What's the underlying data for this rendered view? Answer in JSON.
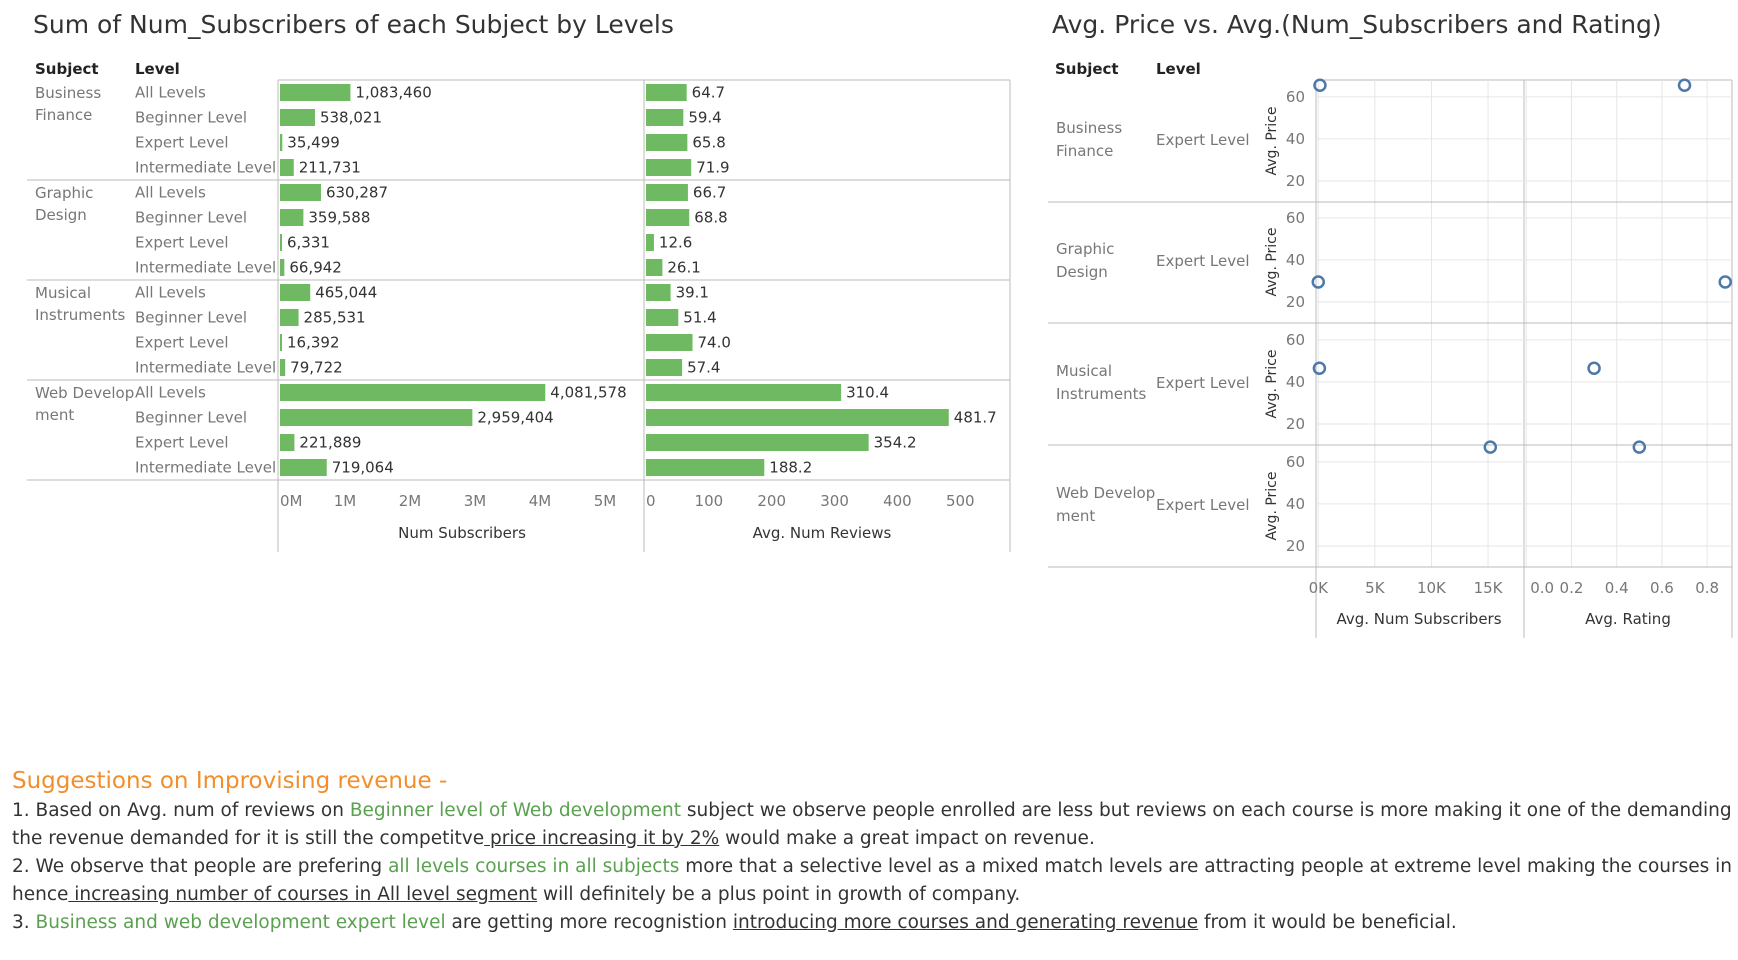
{
  "left_title": "Sum of Num_Subscribers of each Subject by Levels",
  "right_title": "Avg. Price vs. Avg.(Num_Subscribers and Rating)",
  "col_headers": {
    "subject": "Subject",
    "level": "Level"
  },
  "colors": {
    "bar": "#6eb962",
    "marker": "#4e79a7",
    "accent": "#f28e2b",
    "highlight": "#59a14f",
    "grid": "#e6e6e6",
    "border": "#bbbbbb"
  },
  "chart_data": [
    {
      "type": "bar",
      "title": "Sum of Num_Subscribers of each Subject by Levels",
      "groups": [
        {
          "subject": [
            "Business",
            "Finance"
          ]
        },
        {
          "subject": [
            "Graphic",
            "Design"
          ]
        },
        {
          "subject": [
            "Musical",
            "Instruments"
          ]
        },
        {
          "subject": [
            "Web Develop",
            "ment"
          ]
        }
      ],
      "rows": [
        {
          "group": 0,
          "level": "All Levels",
          "subscribers": 1083460,
          "sub_label": "1,083,460",
          "reviews": 64.7,
          "rev_label": "64.7"
        },
        {
          "group": 0,
          "level": "Beginner Level",
          "subscribers": 538021,
          "sub_label": "538,021",
          "reviews": 59.4,
          "rev_label": "59.4"
        },
        {
          "group": 0,
          "level": "Expert Level",
          "subscribers": 35499,
          "sub_label": "35,499",
          "reviews": 65.8,
          "rev_label": "65.8"
        },
        {
          "group": 0,
          "level": "Intermediate Level",
          "subscribers": 211731,
          "sub_label": "211,731",
          "reviews": 71.9,
          "rev_label": "71.9"
        },
        {
          "group": 1,
          "level": "All Levels",
          "subscribers": 630287,
          "sub_label": "630,287",
          "reviews": 66.7,
          "rev_label": "66.7"
        },
        {
          "group": 1,
          "level": "Beginner Level",
          "subscribers": 359588,
          "sub_label": "359,588",
          "reviews": 68.8,
          "rev_label": "68.8"
        },
        {
          "group": 1,
          "level": "Expert Level",
          "subscribers": 6331,
          "sub_label": "6,331",
          "reviews": 12.6,
          "rev_label": "12.6"
        },
        {
          "group": 1,
          "level": "Intermediate Level",
          "subscribers": 66942,
          "sub_label": "66,942",
          "reviews": 26.1,
          "rev_label": "26.1"
        },
        {
          "group": 2,
          "level": "All Levels",
          "subscribers": 465044,
          "sub_label": "465,044",
          "reviews": 39.1,
          "rev_label": "39.1"
        },
        {
          "group": 2,
          "level": "Beginner Level",
          "subscribers": 285531,
          "sub_label": "285,531",
          "reviews": 51.4,
          "rev_label": "51.4"
        },
        {
          "group": 2,
          "level": "Expert Level",
          "subscribers": 16392,
          "sub_label": "16,392",
          "reviews": 74.0,
          "rev_label": "74.0"
        },
        {
          "group": 2,
          "level": "Intermediate Level",
          "subscribers": 79722,
          "sub_label": "79,722",
          "reviews": 57.4,
          "rev_label": "57.4"
        },
        {
          "group": 3,
          "level": "All Levels",
          "subscribers": 4081578,
          "sub_label": "4,081,578",
          "reviews": 310.4,
          "rev_label": "310.4"
        },
        {
          "group": 3,
          "level": "Beginner Level",
          "subscribers": 2959404,
          "sub_label": "2,959,404",
          "reviews": 481.7,
          "rev_label": "481.7"
        },
        {
          "group": 3,
          "level": "Expert Level",
          "subscribers": 221889,
          "sub_label": "221,889",
          "reviews": 354.2,
          "rev_label": "354.2"
        },
        {
          "group": 3,
          "level": "Intermediate Level",
          "subscribers": 719064,
          "sub_label": "719,064",
          "reviews": 188.2,
          "rev_label": "188.2"
        }
      ],
      "axes": [
        {
          "label": "Num Subscribers",
          "range": [
            0,
            5600000
          ],
          "ticks": [
            0,
            1000000,
            2000000,
            3000000,
            4000000,
            5000000
          ],
          "tick_labels": [
            "0M",
            "1M",
            "2M",
            "3M",
            "4M",
            "5M"
          ]
        },
        {
          "label": "Avg. Num Reviews",
          "range": [
            0,
            560
          ],
          "ticks": [
            0,
            100,
            200,
            300,
            400,
            500
          ],
          "tick_labels": [
            "0",
            "100",
            "200",
            "300",
            "400",
            "500"
          ]
        }
      ],
      "grid": false
    },
    {
      "type": "scatter",
      "title": "Avg. Price vs. Avg.(Num_Subscribers and Rating)",
      "ylabel": "Avg. Price",
      "y_ticks": [
        20,
        40,
        60
      ],
      "y_range": [
        10,
        68
      ],
      "level": "Expert Level",
      "rows": [
        {
          "subject": [
            "Business",
            "Finance"
          ],
          "price": 65.5,
          "subscribers": 150,
          "rating": 0.7
        },
        {
          "subject": [
            "Graphic",
            "Design"
          ],
          "price": 29.5,
          "subscribers": 0,
          "rating": 0.88
        },
        {
          "subject": [
            "Musical",
            "Instruments"
          ],
          "price": 46.5,
          "subscribers": 100,
          "rating": 0.3
        },
        {
          "subject": [
            "Web Develop",
            "ment"
          ],
          "price": 67,
          "subscribers": 15200,
          "rating": 0.5
        }
      ],
      "x_axes": [
        {
          "label": "Avg. Num Subscribers",
          "range": [
            -200,
            18000
          ],
          "ticks": [
            0,
            5000,
            10000,
            15000
          ],
          "tick_labels": [
            "0K",
            "5K",
            "10K",
            "15K"
          ]
        },
        {
          "label": "Avg. Rating",
          "range": [
            -0.01,
            0.91
          ],
          "ticks": [
            0,
            0.2,
            0.4,
            0.6,
            0.8
          ],
          "tick_labels": [
            "0.0",
            "0.2",
            "0.4",
            "0.6",
            "0.8"
          ]
        }
      ],
      "grid": true
    }
  ],
  "suggestions": {
    "heading": "Suggestions on Improvising revenue -",
    "l1a": "1. Based on Avg. num of reviews on ",
    "l1b": "Beginner level of Web development",
    "l1c": " subject we observe people enrolled are less but reviews on each course is more making it one of the demanding skills and",
    "l2a": "the revenue demanded for it is still the competitve",
    "l2b": " price increasing it by 2%",
    "l2c": " would make a great impact on revenue.",
    "l3a": "2. We observe that people are prefering ",
    "l3b": "all levels courses in all subjects",
    "l3c": " more that a selective level as a mixed match levels are attracting people at extreme level making the courses in demand",
    "l4a": "hence",
    "l4b": " increasing number of courses in All level segment",
    "l4c": " will definitely be a plus point in growth of company.",
    "l5a": "3. ",
    "l5b": "Business and web development expert level",
    "l5c": " are getting more recognistion ",
    "l5d": "introducing more courses and generating revenue",
    "l5e": " from it would be beneficial."
  }
}
